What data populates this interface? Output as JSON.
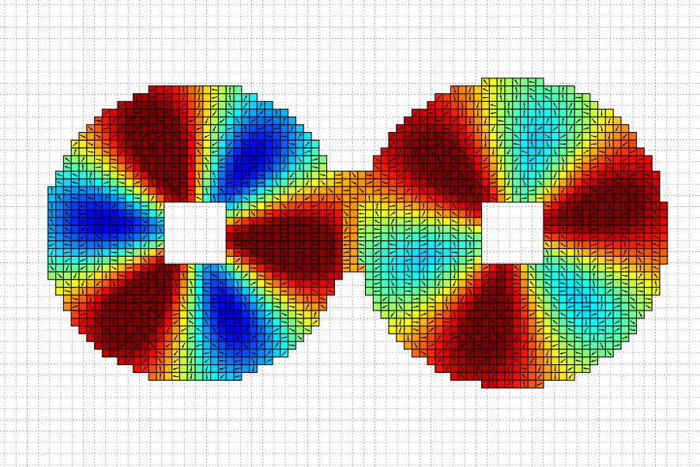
{
  "chart_data": {
    "type": "heatmap",
    "title": "",
    "xlabel": "",
    "ylabel": "",
    "grid": true,
    "colormap": "jet",
    "colormap_stops": [
      "#00008f",
      "#0000ff",
      "#00ffff",
      "#ffff00",
      "#ff0000",
      "#800000"
    ],
    "value_range": [
      0,
      1
    ],
    "mesh_line_color": "#000000",
    "arrow_color": "#000000",
    "background_grid_color": "#9a9a9a",
    "domains": [
      {
        "name": "left-annulus",
        "center": [
          -1.0,
          0.0
        ],
        "outer_radius": 0.97,
        "hole_half_width": 0.2,
        "field": {
          "mode": 3,
          "offset": 0.38,
          "radial_min": 0.6,
          "mean": 0.62,
          "amplitude": 0.52
        }
      },
      {
        "name": "right-annulus",
        "center": [
          1.05,
          0.0
        ],
        "outer_radius": 1.0,
        "hole_half_width": 0.2,
        "field": {
          "mode": 3,
          "offset": -0.8,
          "radial_min": 0.6,
          "mean": 0.7,
          "amplitude": 0.36
        }
      }
    ],
    "bridge": {
      "x_range": [
        -0.12,
        0.16
      ],
      "y_range": [
        -0.24,
        0.38
      ]
    },
    "cell_size": 0.1,
    "x_range": [
      -2.2,
      2.2
    ],
    "y_range": [
      -1.4,
      1.5
    ]
  }
}
